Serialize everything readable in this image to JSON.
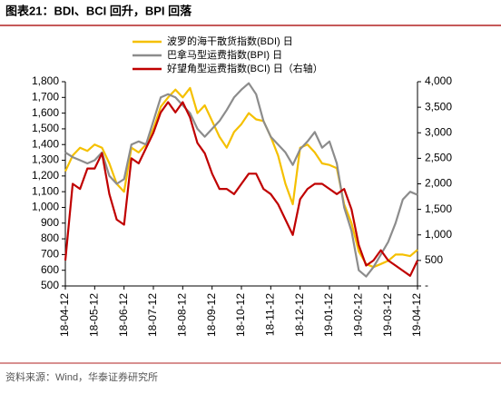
{
  "chart_data": {
    "type": "line",
    "title": "图表21：BDI、BCI 回升，BPI 回落",
    "source": "资料来源：Wind，华泰证券研究所",
    "categories": [
      "18-04-12",
      null,
      null,
      null,
      "18-05-12",
      null,
      null,
      null,
      "18-06-12",
      null,
      null,
      null,
      "18-07-12",
      null,
      null,
      null,
      "18-08-12",
      null,
      null,
      null,
      "18-09-12",
      null,
      null,
      null,
      "18-10-12",
      null,
      null,
      null,
      "18-11-12",
      null,
      null,
      null,
      "18-12-12",
      null,
      null,
      null,
      "19-01-12",
      null,
      null,
      null,
      "19-02-12",
      null,
      null,
      null,
      "19-03-12",
      null,
      null,
      null,
      "19-04-12"
    ],
    "series": [
      {
        "name": "波罗的海干散货指数(BDI) 日",
        "color": "#f5c000",
        "values": [
          1230,
          1330,
          1380,
          1360,
          1400,
          1380,
          1280,
          1150,
          1100,
          1380,
          1350,
          1400,
          1500,
          1640,
          1700,
          1750,
          1700,
          1760,
          1600,
          1650,
          1550,
          1450,
          1380,
          1480,
          1530,
          1600,
          1560,
          1550,
          1450,
          1330,
          1150,
          1020,
          1380,
          1400,
          1350,
          1280,
          1270,
          1250,
          1020,
          900,
          720,
          640,
          620,
          640,
          660,
          700,
          700,
          690,
          730
        ]
      },
      {
        "name": "巴拿马型运费指数(BPI) 日",
        "color": "#8c8c8c",
        "values": [
          1350,
          1320,
          1300,
          1280,
          1300,
          1350,
          1200,
          1150,
          1180,
          1400,
          1420,
          1400,
          1550,
          1700,
          1720,
          1700,
          1650,
          1600,
          1500,
          1450,
          1500,
          1550,
          1620,
          1700,
          1750,
          1790,
          1720,
          1550,
          1450,
          1400,
          1350,
          1270,
          1370,
          1420,
          1480,
          1380,
          1420,
          1280,
          1000,
          850,
          600,
          560,
          620,
          700,
          780,
          900,
          1050,
          1100,
          1080
        ]
      },
      {
        "name": "好望角型运费指数(BCI) 日（右轴）",
        "color": "#c00000",
        "axis": "y2",
        "values": [
          500,
          2000,
          1900,
          2300,
          2300,
          2600,
          1800,
          1300,
          1200,
          2500,
          2400,
          2700,
          3000,
          3400,
          3600,
          3400,
          3600,
          3300,
          2800,
          2600,
          2200,
          1900,
          1900,
          1800,
          2000,
          2200,
          2200,
          1900,
          1800,
          1600,
          1300,
          1000,
          1700,
          1900,
          2000,
          2000,
          1900,
          1800,
          1900,
          1500,
          800,
          400,
          500,
          700,
          500,
          400,
          300,
          200,
          500
        ]
      }
    ],
    "ylim": [
      500,
      1800
    ],
    "yticks": [
      500,
      600,
      700,
      800,
      900,
      {
        "value": 1000,
        "label": "1,000"
      },
      {
        "value": 1100,
        "label": "1,100"
      },
      {
        "value": 1200,
        "label": "1,200"
      },
      {
        "value": 1300,
        "label": "1,300"
      },
      {
        "value": 1400,
        "label": "1,400"
      },
      {
        "value": 1500,
        "label": "1,500"
      },
      {
        "value": 1600,
        "label": "1,600"
      },
      {
        "value": 1700,
        "label": "1,700"
      },
      {
        "value": 1800,
        "label": "1,800"
      }
    ],
    "y2lim": [
      0,
      4000
    ],
    "y2ticks": [
      {
        "value": 0,
        "label": "-"
      },
      500,
      {
        "value": 1000,
        "label": "1,000"
      },
      {
        "value": 1500,
        "label": "1,500"
      },
      {
        "value": 2000,
        "label": "2,000"
      },
      {
        "value": 2500,
        "label": "2,500"
      },
      {
        "value": 3000,
        "label": "3,000"
      },
      {
        "value": 3500,
        "label": "3,500"
      },
      {
        "value": 4000,
        "label": "4,000"
      }
    ],
    "grid": false,
    "legend": "upper left"
  }
}
